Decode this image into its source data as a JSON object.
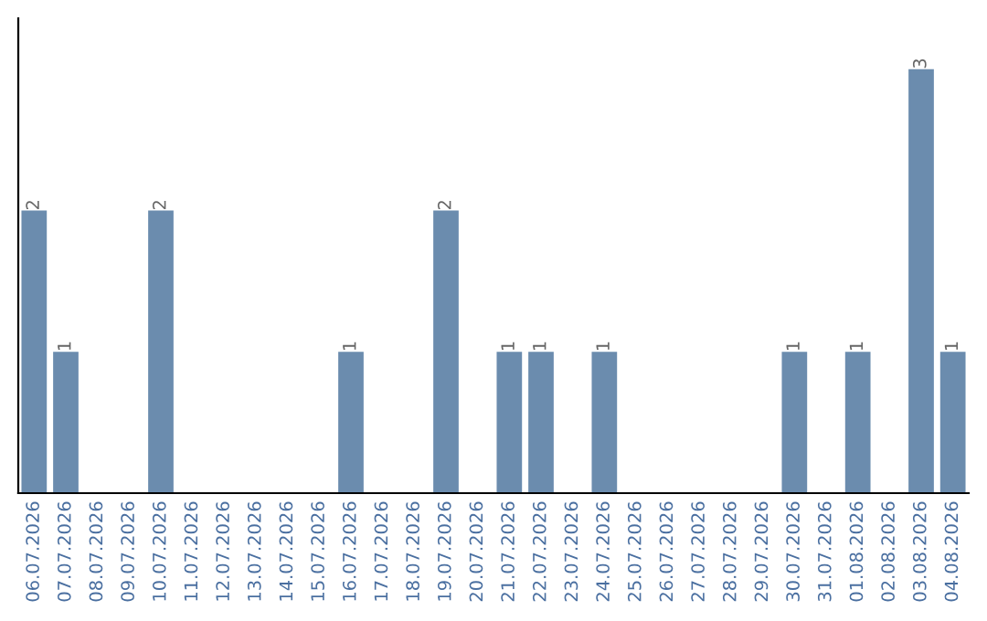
{
  "chart_data": {
    "type": "bar",
    "categories": [
      "06.07.2026",
      "07.07.2026",
      "08.07.2026",
      "09.07.2026",
      "10.07.2026",
      "11.07.2026",
      "12.07.2026",
      "13.07.2026",
      "14.07.2026",
      "15.07.2026",
      "16.07.2026",
      "17.07.2026",
      "18.07.2026",
      "19.07.2026",
      "20.07.2026",
      "21.07.2026",
      "22.07.2026",
      "23.07.2026",
      "24.07.2026",
      "25.07.2026",
      "26.07.2026",
      "27.07.2026",
      "28.07.2026",
      "29.07.2026",
      "30.07.2026",
      "31.07.2026",
      "01.08.2026",
      "02.08.2026",
      "03.08.2026",
      "04.08.2026"
    ],
    "values": [
      2,
      1,
      0,
      0,
      2,
      0,
      0,
      0,
      0,
      0,
      1,
      0,
      0,
      2,
      0,
      1,
      1,
      0,
      1,
      0,
      0,
      0,
      0,
      0,
      1,
      0,
      1,
      0,
      3,
      1
    ],
    "value_labels": [
      "2",
      "1",
      null,
      null,
      "2",
      null,
      null,
      null,
      null,
      null,
      "1",
      null,
      null,
      "2",
      null,
      "1",
      "1",
      null,
      "1",
      null,
      null,
      null,
      null,
      null,
      "1",
      null,
      "1",
      null,
      "3",
      "1"
    ],
    "color": "#6b8cae",
    "grid": false,
    "legend": false,
    "tick_labels": "x"
  }
}
